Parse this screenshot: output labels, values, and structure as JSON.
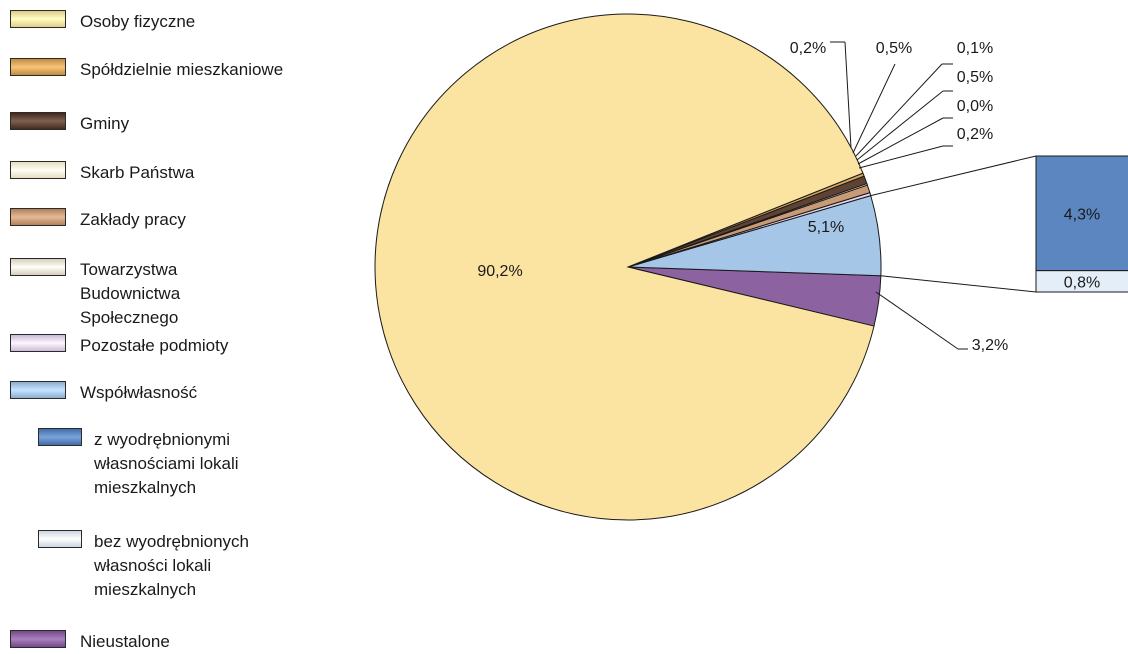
{
  "legend": [
    {
      "label": "Osoby fizyczne",
      "color": "#fbe3a2"
    },
    {
      "label": "Spółdzielnie mieszkaniowe",
      "color": "#d9a55a"
    },
    {
      "label": "Gminy",
      "color": "#5e4334"
    },
    {
      "label": "Skarb Państwa",
      "color": "#fdf6d8"
    },
    {
      "label": "Zakłady pracy",
      "color": "#c89a76"
    },
    {
      "label": "Towarzystwa Budownictwa Społecznego",
      "color": "#efe6d8"
    },
    {
      "label": "Pozostałe podmioty",
      "color": "#e2d6ee"
    },
    {
      "label": "Współwłasność",
      "color": "#a6c6e8"
    },
    {
      "label": "z wyodrębnionymi własnościami lokali mieszkalnych",
      "color": "#5b86bf"
    },
    {
      "label": "bez wyodrębnionych własności lokali mieszkalnych",
      "color": "#e4eef9"
    },
    {
      "label": "Nieustalone",
      "color": "#8c63a0"
    }
  ],
  "chart_data": {
    "type": "pie",
    "slices": [
      {
        "name": "Osoby fizyczne",
        "value": 90.2,
        "label": "90,2%",
        "color": "#fbe3a2"
      },
      {
        "name": "Spółdzielnie mieszkaniowe",
        "value": 0.2,
        "label": "0,2%",
        "color": "#d9a55a"
      },
      {
        "name": "Gminy",
        "value": 0.5,
        "label": "0,5%",
        "color": "#5e4334"
      },
      {
        "name": "Skarb Państwa",
        "value": 0.1,
        "label": "0,1%",
        "color": "#fdf6d8"
      },
      {
        "name": "Zakłady pracy",
        "value": 0.5,
        "label": "0,5%",
        "color": "#c89a76"
      },
      {
        "name": "Towarzystwa Budownictwa Społecznego",
        "value": 0.0,
        "label": "0,0%",
        "color": "#efe6d8"
      },
      {
        "name": "Pozostałe podmioty",
        "value": 0.2,
        "label": "0,2%",
        "color": "#e2d6ee"
      },
      {
        "name": "Współwłasność",
        "value": 5.1,
        "label": "5,1%",
        "color": "#a6c6e8"
      },
      {
        "name": "Nieustalone",
        "value": 3.2,
        "label": "3,2%",
        "color": "#8c63a0"
      }
    ],
    "breakdown": {
      "parent": "Współwłasność",
      "items": [
        {
          "name": "z wyodrębnionymi własnościami lokali mieszkalnych",
          "value": 4.3,
          "label": "4,3%",
          "color": "#5b86bf"
        },
        {
          "name": "bez wyodrębnionych własności lokali mieszkalnych",
          "value": 0.8,
          "label": "0,8%",
          "color": "#e4eef9"
        }
      ]
    }
  }
}
